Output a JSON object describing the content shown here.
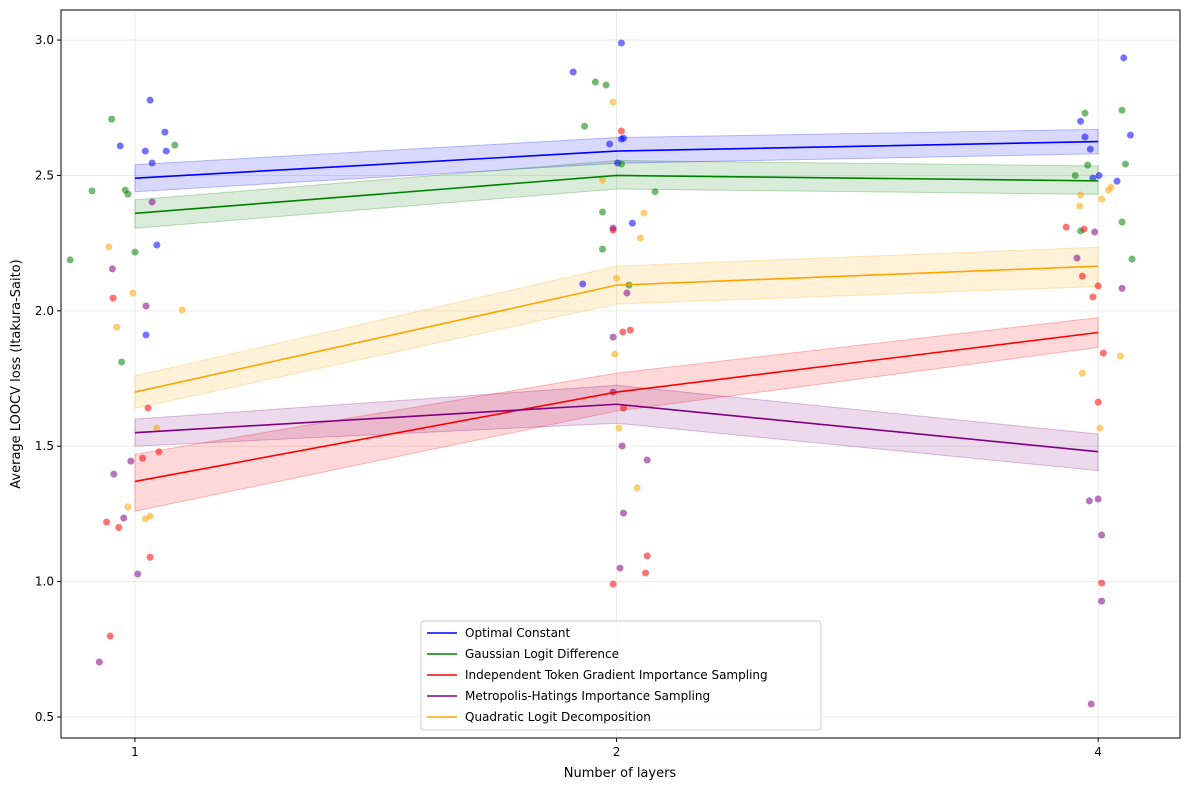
{
  "chart_data": {
    "type": "line",
    "title": "",
    "xlabel": "Number of layers",
    "ylabel": "Average LOOCV loss (Itakura-Saito)",
    "x_scale": "log2",
    "xlim": [
      0.899,
      4.5
    ],
    "ylim": [
      0.4225,
      3.111
    ],
    "xticks": [
      1,
      2,
      4
    ],
    "xtick_labels": [
      "1",
      "2",
      "4"
    ],
    "yticks": [
      0.5,
      1.0,
      1.5,
      2.0,
      2.5,
      3.0
    ],
    "ytick_labels": [
      "0.5",
      "1.0",
      "1.5",
      "2.0",
      "2.5",
      "3.0"
    ],
    "grid": true,
    "legend_placement": "lower-center",
    "x": [
      1,
      2,
      4
    ],
    "series": [
      {
        "name": "Optimal Constant",
        "color": "#0000ff",
        "values": [
          2.49,
          2.59,
          2.625
        ],
        "band": [
          [
            2.44,
            2.54
          ],
          [
            2.545,
            2.64
          ],
          [
            2.58,
            2.67
          ]
        ],
        "points": [
          [
            0.979,
            2.609
          ],
          [
            1.022,
            2.778
          ],
          [
            1.015,
            2.59
          ],
          [
            1.025,
            2.546
          ],
          [
            1.044,
            2.66
          ],
          [
            1.046,
            2.59
          ],
          [
            1.032,
            2.243
          ],
          [
            1.016,
            1.911
          ],
          [
            1.879,
            2.882
          ],
          [
            2.014,
            2.989
          ],
          [
            1.98,
            2.616
          ],
          [
            2.003,
            2.546
          ],
          [
            2.014,
            2.634
          ],
          [
            2.02,
            2.638
          ],
          [
            2.046,
            2.324
          ],
          [
            1.905,
            2.099
          ],
          [
            3.9,
            2.7
          ],
          [
            3.925,
            2.642
          ],
          [
            3.955,
            2.597
          ],
          [
            3.97,
            2.49
          ],
          [
            4.005,
            2.5
          ],
          [
            4.11,
            2.479
          ],
          [
            4.15,
            2.934
          ],
          [
            4.19,
            2.649
          ]
        ]
      },
      {
        "name": "Gaussian Logit Difference",
        "color": "#008000",
        "values": [
          2.36,
          2.5,
          2.48
        ],
        "band": [
          [
            2.305,
            2.41
          ],
          [
            2.45,
            2.555
          ],
          [
            2.43,
            2.535
          ]
        ],
        "points": [
          [
            0.911,
            2.188
          ],
          [
            0.94,
            2.443
          ],
          [
            0.967,
            2.708
          ],
          [
            0.986,
            2.446
          ],
          [
            0.99,
            2.431
          ],
          [
            1.0,
            2.217
          ],
          [
            0.981,
            1.811
          ],
          [
            1.059,
            2.612
          ],
          [
            1.94,
            2.845
          ],
          [
            1.97,
            2.834
          ],
          [
            1.91,
            2.682
          ],
          [
            2.014,
            2.542
          ],
          [
            2.114,
            2.44
          ],
          [
            1.96,
            2.365
          ],
          [
            1.96,
            2.228
          ],
          [
            2.036,
            2.095
          ],
          [
            3.925,
            2.73
          ],
          [
            3.87,
            2.5
          ],
          [
            3.94,
            2.538
          ],
          [
            3.9,
            2.295
          ],
          [
            4.14,
            2.741
          ],
          [
            4.16,
            2.542
          ],
          [
            4.14,
            2.328
          ],
          [
            4.2,
            2.191
          ]
        ]
      },
      {
        "name": "Independent Token Gradient Importance Sampling",
        "color": "#ff0000",
        "values": [
          1.37,
          1.7,
          1.92
        ],
        "band": [
          [
            1.26,
            1.47
          ],
          [
            1.63,
            1.77
          ],
          [
            1.865,
            1.975
          ]
        ],
        "points": [
          [
            0.969,
            2.047
          ],
          [
            1.019,
            1.641
          ],
          [
            1.011,
            1.456
          ],
          [
            1.035,
            1.479
          ],
          [
            0.96,
            1.22
          ],
          [
            0.977,
            1.2
          ],
          [
            1.022,
            1.09
          ],
          [
            0.965,
            0.799
          ],
          [
            2.014,
            2.664
          ],
          [
            1.99,
            2.298
          ],
          [
            2.018,
            1.922
          ],
          [
            2.04,
            1.929
          ],
          [
            2.02,
            1.641
          ],
          [
            1.99,
            0.991
          ],
          [
            2.09,
            1.095
          ],
          [
            2.085,
            1.032
          ],
          [
            3.82,
            2.309
          ],
          [
            3.92,
            2.302
          ],
          [
            3.91,
            2.128
          ],
          [
            4.0,
            2.092
          ],
          [
            3.97,
            2.051
          ],
          [
            4.03,
            1.844
          ],
          [
            4.0,
            1.663
          ],
          [
            4.02,
            0.995
          ]
        ]
      },
      {
        "name": "Metropolis-Hatings Importance Sampling",
        "color": "#800080",
        "values": [
          1.55,
          1.655,
          1.48
        ],
        "band": [
          [
            1.5,
            1.6
          ],
          [
            1.585,
            1.725
          ],
          [
            1.41,
            1.545
          ]
        ],
        "points": [
          [
            0.968,
            2.155
          ],
          [
            1.016,
            2.018
          ],
          [
            1.025,
            2.402
          ],
          [
            0.97,
            1.397
          ],
          [
            0.994,
            1.445
          ],
          [
            0.984,
            1.235
          ],
          [
            1.004,
            1.028
          ],
          [
            0.95,
            0.703
          ],
          [
            1.99,
            2.306
          ],
          [
            1.99,
            1.903
          ],
          [
            2.03,
            2.066
          ],
          [
            1.99,
            1.7
          ],
          [
            2.016,
            1.501
          ],
          [
            2.09,
            1.449
          ],
          [
            2.02,
            1.253
          ],
          [
            2.01,
            1.05
          ],
          [
            3.98,
            2.291
          ],
          [
            3.88,
            2.195
          ],
          [
            4.14,
            2.083
          ],
          [
            3.95,
            1.298
          ],
          [
            4.0,
            1.305
          ],
          [
            4.02,
            1.172
          ],
          [
            4.02,
            0.928
          ],
          [
            3.96,
            0.548
          ]
        ]
      },
      {
        "name": "Quadratic Logit Decomposition",
        "color": "#ffa500",
        "values": [
          1.7,
          2.095,
          2.165
        ],
        "band": [
          [
            1.64,
            1.76
          ],
          [
            2.025,
            2.165
          ],
          [
            2.09,
            2.235
          ]
        ],
        "points": [
          [
            0.963,
            2.236
          ],
          [
            0.997,
            2.066
          ],
          [
            0.974,
            1.94
          ],
          [
            1.07,
            2.003
          ],
          [
            1.032,
            1.567
          ],
          [
            0.99,
            1.276
          ],
          [
            1.015,
            1.232
          ],
          [
            1.022,
            1.242
          ],
          [
            1.99,
            2.771
          ],
          [
            1.96,
            2.483
          ],
          [
            2.0,
            2.121
          ],
          [
            2.08,
            2.361
          ],
          [
            2.07,
            2.269
          ],
          [
            1.995,
            1.84
          ],
          [
            2.007,
            1.567
          ],
          [
            2.06,
            1.346
          ],
          [
            3.9,
            2.428
          ],
          [
            3.895,
            2.387
          ],
          [
            4.06,
            2.446
          ],
          [
            4.075,
            2.457
          ],
          [
            4.02,
            2.412
          ],
          [
            3.91,
            1.77
          ],
          [
            4.13,
            1.833
          ],
          [
            4.01,
            1.567
          ]
        ]
      }
    ]
  }
}
